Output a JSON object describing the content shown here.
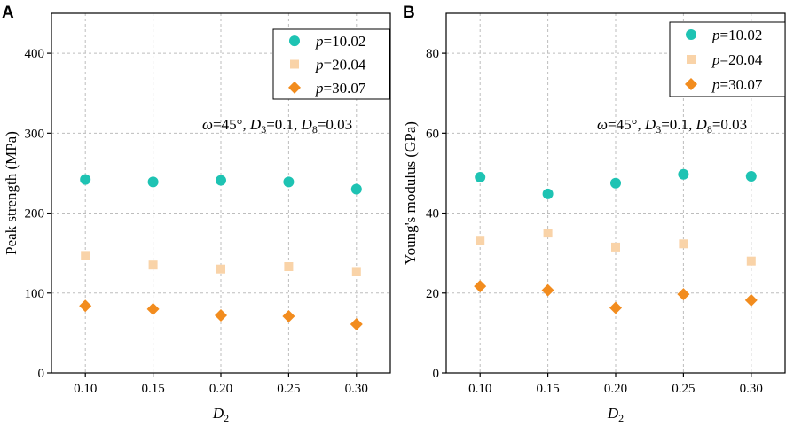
{
  "chart_data": [
    {
      "panel_label": "A",
      "type": "scatter",
      "xlabel": "D",
      "xlabel_sub": "2",
      "ylabel": "Peak strength (MPa)",
      "x": [
        0.1,
        0.15,
        0.2,
        0.25,
        0.3
      ],
      "x_tick_labels": [
        "0.10",
        "0.15",
        "0.20",
        "0.25",
        "0.30"
      ],
      "xlim": [
        0.075,
        0.325
      ],
      "ylim": [
        0,
        450
      ],
      "y_ticks": [
        0,
        100,
        200,
        300,
        400
      ],
      "y_tick_labels": [
        "0",
        "100",
        "200",
        "300",
        "400"
      ],
      "grid": true,
      "legend_position": "top-right",
      "series": [
        {
          "name": "p=10.02",
          "name_italic": "p",
          "name_rest": "=10.02",
          "marker": "circle",
          "color": "#1ec3b3",
          "values": [
            242,
            239,
            241,
            239,
            230
          ]
        },
        {
          "name": "p=20.04",
          "name_italic": "p",
          "name_rest": "=20.04",
          "marker": "square",
          "color": "#f9d3a8",
          "values": [
            147,
            135,
            130,
            133,
            127
          ]
        },
        {
          "name": "p=30.07",
          "name_italic": "p",
          "name_rest": "=30.07",
          "marker": "diamond",
          "color": "#f28c1e",
          "values": [
            84,
            80,
            72,
            71,
            61
          ]
        }
      ],
      "annotation": {
        "omega": "ω",
        "omega_rest": "=45°, ",
        "d3": "D",
        "d3_sub": "3",
        "d3_rest": "=0.1, ",
        "d8": "D",
        "d8_sub": "8",
        "d8_rest": "=0.03"
      }
    },
    {
      "panel_label": "B",
      "type": "scatter",
      "xlabel": "D",
      "xlabel_sub": "2",
      "ylabel": "Young's modulus (GPa)",
      "x": [
        0.1,
        0.15,
        0.2,
        0.25,
        0.3
      ],
      "x_tick_labels": [
        "0.10",
        "0.15",
        "0.20",
        "0.25",
        "0.30"
      ],
      "xlim": [
        0.075,
        0.325
      ],
      "ylim": [
        0,
        90
      ],
      "y_ticks": [
        0,
        20,
        40,
        60,
        80
      ],
      "y_tick_labels": [
        "0",
        "20",
        "40",
        "60",
        "80"
      ],
      "grid": true,
      "legend_position": "top-right",
      "series": [
        {
          "name": "p=10.02",
          "name_italic": "p",
          "name_rest": "=10.02",
          "marker": "circle",
          "color": "#1ec3b3",
          "values": [
            49,
            44.8,
            47.5,
            49.7,
            49.2
          ]
        },
        {
          "name": "p=20.04",
          "name_italic": "p",
          "name_rest": "=20.04",
          "marker": "square",
          "color": "#f9d3a8",
          "values": [
            33.2,
            35,
            31.5,
            32.3,
            28
          ]
        },
        {
          "name": "p=30.07",
          "name_italic": "p",
          "name_rest": "=30.07",
          "marker": "diamond",
          "color": "#f28c1e",
          "values": [
            21.7,
            20.7,
            16.3,
            19.7,
            18.2
          ]
        }
      ],
      "annotation": {
        "omega": "ω",
        "omega_rest": "=45°, ",
        "d3": "D",
        "d3_sub": "3",
        "d3_rest": "=0.1, ",
        "d8": "D",
        "d8_sub": "8",
        "d8_rest": "=0.03"
      }
    }
  ]
}
